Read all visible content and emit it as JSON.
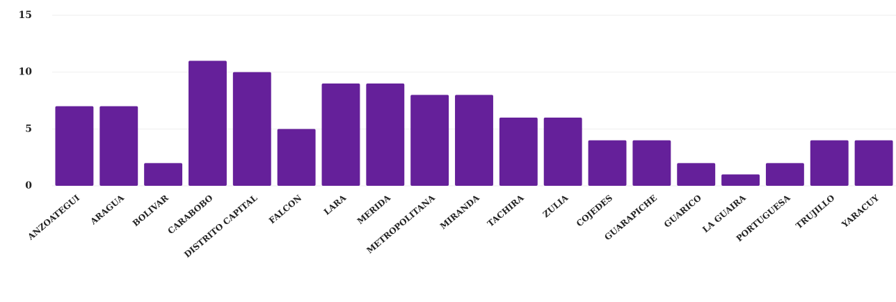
{
  "chart_data": {
    "type": "bar",
    "categories": [
      "ANZOATEGUI",
      "ARAGUA",
      "BOLIVAR",
      "CARABOBO",
      "DISTRITO CAPITAL",
      "FALCON",
      "LARA",
      "MERIDA",
      "METROPOLITANA",
      "MIRANDA",
      "TACHIRA",
      "ZULIA",
      "COJEDES",
      "GUARAPICHE",
      "GUARICO",
      "LA GUAIRA",
      "PORTUGUESA",
      "TRUJILLO",
      "YARACUY"
    ],
    "values": [
      7,
      7,
      2,
      11,
      10,
      5,
      9,
      9,
      8,
      8,
      6,
      6,
      4,
      4,
      2,
      1,
      2,
      4,
      4
    ],
    "color": "#65209a",
    "ylim": [
      0,
      15
    ],
    "yticks": [
      0,
      5,
      10,
      15
    ],
    "grid": true
  }
}
